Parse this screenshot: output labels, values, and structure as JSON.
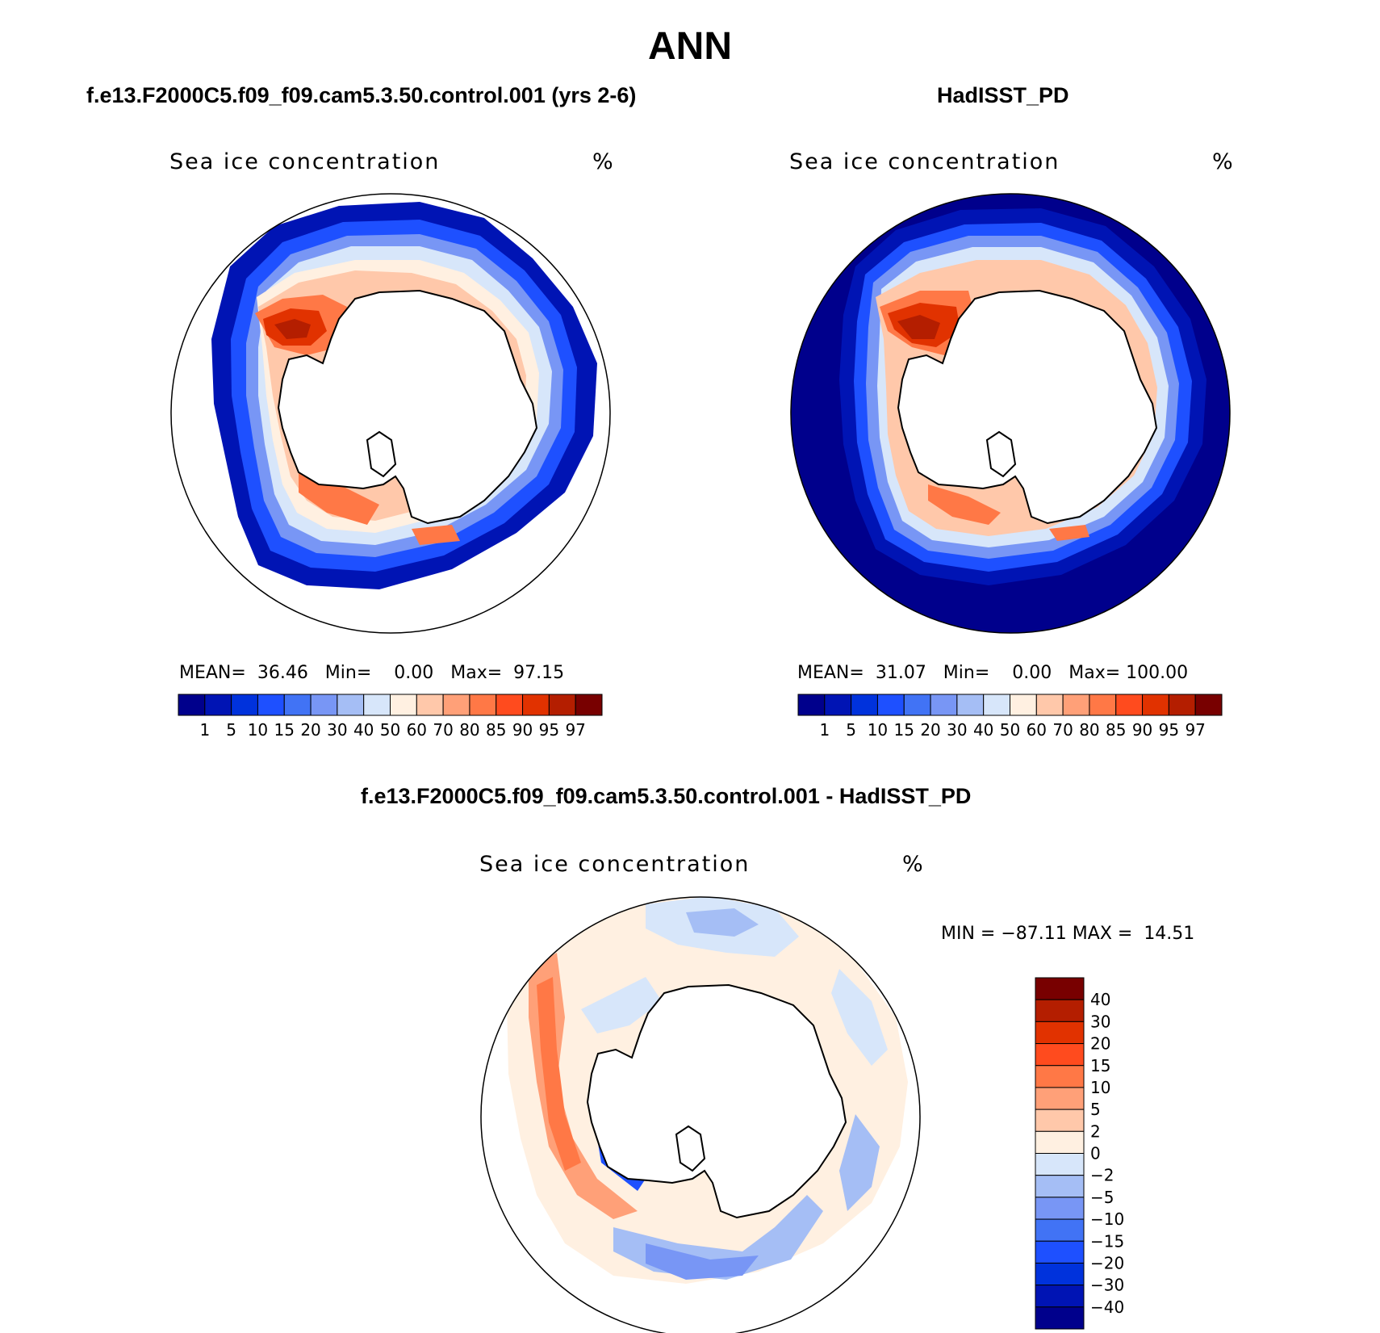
{
  "title": "ANN",
  "panels": {
    "model": {
      "case": "f.e13.F2000C5.f09_f09.cam5.3.50.control.001 (yrs 2-6)",
      "variable": "Sea ice concentration",
      "units": "%",
      "stats": {
        "mean_label": "MEAN=",
        "mean": "36.46",
        "min_label": "Min=",
        "min": "0.00",
        "max_label": "Max=",
        "max": "97.15"
      }
    },
    "obs": {
      "case": "HadISST_PD",
      "variable": "Sea ice concentration",
      "units": "%",
      "stats": {
        "mean_label": "MEAN=",
        "mean": "31.07",
        "min_label": "Min=",
        "min": "0.00",
        "max_label": "Max=",
        "max": "100.00"
      }
    },
    "diff": {
      "case": "f.e13.F2000C5.f09_f09.cam5.3.50.control.001 - HadISST_PD",
      "variable": "Sea ice concentration",
      "units": "%",
      "stats": {
        "min_label": "MIN =",
        "min": "−87.11",
        "max_label": "MAX =",
        "max": "14.51"
      }
    }
  },
  "chart_data": {
    "type": "heatmap",
    "projection": "south-polar stereographic",
    "abs_colorbar": {
      "levels": [
        "1",
        "5",
        "10",
        "15",
        "20",
        "30",
        "40",
        "50",
        "60",
        "70",
        "80",
        "85",
        "90",
        "95",
        "97"
      ],
      "colors": [
        "#00008c",
        "#0014b4",
        "#0032dc",
        "#1e50ff",
        "#4173f5",
        "#7896f5",
        "#a5bef5",
        "#d7e6fa",
        "#fff0e1",
        "#ffc8aa",
        "#ffa078",
        "#ff7846",
        "#ff4b1e",
        "#e13200",
        "#b41e00",
        "#780000"
      ]
    },
    "diff_colorbar": {
      "levels": [
        "40",
        "30",
        "20",
        "15",
        "10",
        "5",
        "2",
        "0",
        "−2",
        "−5",
        "−10",
        "−15",
        "−20",
        "−30",
        "−40"
      ],
      "colors": [
        "#780000",
        "#b41e00",
        "#e13200",
        "#ff4b1e",
        "#ff7846",
        "#ffa078",
        "#ffc8aa",
        "#fff0e1",
        "#d7e6fa",
        "#a5bef5",
        "#7896f5",
        "#4173f5",
        "#1e50ff",
        "#0032dc",
        "#0014b4",
        "#00008c"
      ]
    }
  }
}
